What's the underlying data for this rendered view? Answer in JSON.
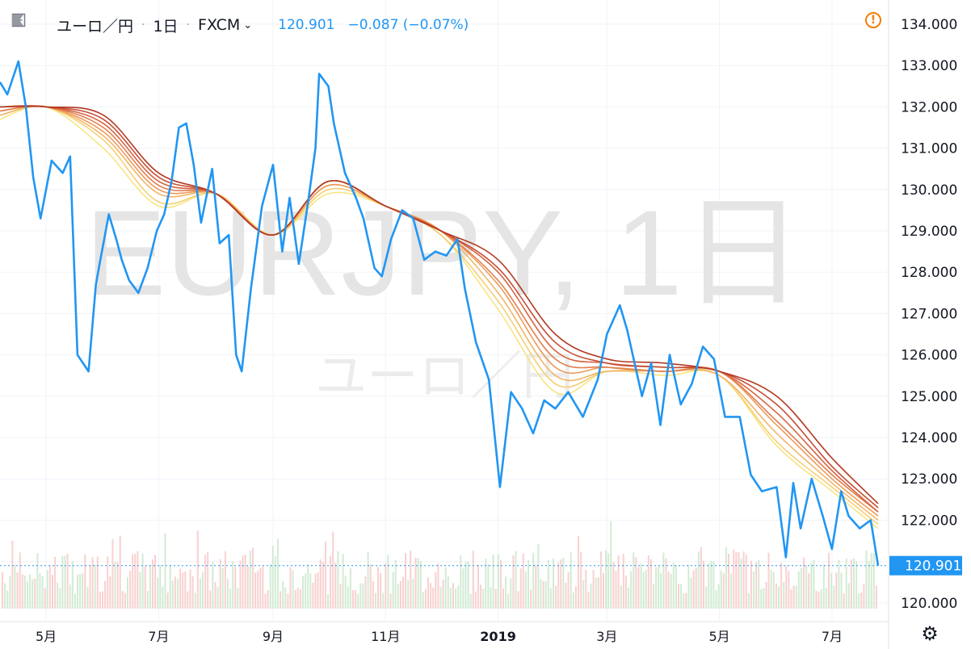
{
  "header": {
    "symbol": "ユーロ／円",
    "interval": "1日",
    "source": "FXCM",
    "price": "120.901",
    "change": "−0.087 (−0.07%)"
  },
  "watermark": {
    "title": "EURJPY, 1日",
    "subtitle": "ユーロ／円"
  },
  "icons": {
    "add": "plus-box-icon",
    "symbol": "flag-icon",
    "alert": "alert-icon",
    "settings": "gear-icon"
  },
  "colors": {
    "price": "#2196f3",
    "ribbon_light": "#f8e483",
    "ribbon_dark": "#b23a20",
    "volume_up": "#c8e6c9",
    "volume_down": "#f8c6c4"
  },
  "chart_data": {
    "type": "line",
    "title": "EURJPY, 1日",
    "y_ticks": [
      "134.000",
      "133.000",
      "132.000",
      "131.000",
      "130.000",
      "129.000",
      "128.000",
      "127.000",
      "126.000",
      "125.000",
      "124.000",
      "123.000",
      "122.000",
      "121.000",
      "120.000"
    ],
    "x_ticks": [
      "5月",
      "7月",
      "9月",
      "11月",
      "2019",
      "3月",
      "5月",
      "7月"
    ],
    "ylim": [
      119.7,
      134.3
    ],
    "last_price_label": "120.901",
    "grid": true,
    "series": [
      {
        "role": "price",
        "x": [
          "2018-04-06",
          "2018-04-10",
          "2018-04-16",
          "2018-04-20",
          "2018-04-24",
          "2018-04-28",
          "2018-05-04",
          "2018-05-10",
          "2018-05-14",
          "2018-05-18",
          "2018-05-24",
          "2018-05-28",
          "2018-05-30",
          "2018-06-04",
          "2018-06-08",
          "2018-06-11",
          "2018-06-15",
          "2018-06-20",
          "2018-06-25",
          "2018-06-30",
          "2018-07-04",
          "2018-07-08",
          "2018-07-12",
          "2018-07-16",
          "2018-07-20",
          "2018-07-24",
          "2018-07-30",
          "2018-08-03",
          "2018-08-08",
          "2018-08-12",
          "2018-08-15",
          "2018-08-20",
          "2018-08-26",
          "2018-09-01",
          "2018-09-06",
          "2018-09-10",
          "2018-09-15",
          "2018-09-20",
          "2018-09-24",
          "2018-09-26",
          "2018-10-01",
          "2018-10-04",
          "2018-10-10",
          "2018-10-16",
          "2018-10-20",
          "2018-10-26",
          "2018-10-30",
          "2018-11-04",
          "2018-11-10",
          "2018-11-16",
          "2018-11-22",
          "2018-11-28",
          "2018-12-04",
          "2018-12-10",
          "2018-12-14",
          "2018-12-20",
          "2018-12-27",
          "2019-01-02",
          "2019-01-08",
          "2019-01-14",
          "2019-01-20",
          "2019-01-26",
          "2019-02-01",
          "2019-02-08",
          "2019-02-16",
          "2019-02-24",
          "2019-03-01",
          "2019-03-08",
          "2019-03-12",
          "2019-03-20",
          "2019-03-25",
          "2019-03-30",
          "2019-04-04",
          "2019-04-10",
          "2019-04-16",
          "2019-04-22",
          "2019-04-28",
          "2019-05-04",
          "2019-05-12",
          "2019-05-18",
          "2019-05-24",
          "2019-06-01",
          "2019-06-06",
          "2019-06-10",
          "2019-06-14",
          "2019-06-20",
          "2019-06-26",
          "2019-07-01",
          "2019-07-06",
          "2019-07-10",
          "2019-07-16",
          "2019-07-22",
          "2019-07-26"
        ],
        "values": [
          132.6,
          132.3,
          133.1,
          132.0,
          130.3,
          129.3,
          130.7,
          130.4,
          130.8,
          126.0,
          125.6,
          127.7,
          128.2,
          129.4,
          128.8,
          128.3,
          127.8,
          127.5,
          128.1,
          129.0,
          129.4,
          130.2,
          131.5,
          131.6,
          130.6,
          129.2,
          130.5,
          128.7,
          128.9,
          126.0,
          125.6,
          127.6,
          129.6,
          130.6,
          128.5,
          129.8,
          128.2,
          129.7,
          131.0,
          132.8,
          132.5,
          131.6,
          130.4,
          129.8,
          129.3,
          128.1,
          127.9,
          128.8,
          129.5,
          129.3,
          128.3,
          128.5,
          128.4,
          128.8,
          127.6,
          126.3,
          125.4,
          122.8,
          125.1,
          124.7,
          124.1,
          124.9,
          124.7,
          125.1,
          124.5,
          125.4,
          126.5,
          127.2,
          126.6,
          125.0,
          125.8,
          124.3,
          126.0,
          124.8,
          125.3,
          126.2,
          125.9,
          124.5,
          124.5,
          123.1,
          122.7,
          122.8,
          121.1,
          122.9,
          121.8,
          123.0,
          122.1,
          121.3,
          122.7,
          122.1,
          121.8,
          122.0,
          120.9
        ]
      },
      {
        "role": "ma",
        "x": [
          "2018-04-06",
          "2018-05-01",
          "2018-06-01",
          "2018-07-01",
          "2018-08-01",
          "2018-09-01",
          "2018-10-01",
          "2018-11-01",
          "2018-12-01",
          "2019-01-01",
          "2019-02-01",
          "2019-03-01",
          "2019-04-01",
          "2019-05-01",
          "2019-06-01",
          "2019-07-01",
          "2019-07-26"
        ],
        "values": [
          131.7,
          132.0,
          131.0,
          129.6,
          129.9,
          128.9,
          129.9,
          129.6,
          128.9,
          127.1,
          125.1,
          125.6,
          125.5,
          125.5,
          123.8,
          122.7,
          121.8
        ]
      },
      {
        "role": "ma",
        "x": [
          "2018-04-06",
          "2018-05-01",
          "2018-06-01",
          "2018-07-01",
          "2018-08-01",
          "2018-09-01",
          "2018-10-01",
          "2018-11-01",
          "2018-12-01",
          "2019-01-01",
          "2019-02-01",
          "2019-03-01",
          "2019-04-01",
          "2019-05-01",
          "2019-06-01",
          "2019-07-01",
          "2019-07-26"
        ],
        "values": [
          131.8,
          132.0,
          131.2,
          129.7,
          129.9,
          128.9,
          130.0,
          129.6,
          128.9,
          127.3,
          125.3,
          125.6,
          125.6,
          125.5,
          123.9,
          122.8,
          121.9
        ]
      },
      {
        "role": "ma",
        "x": [
          "2018-04-06",
          "2018-05-01",
          "2018-06-01",
          "2018-07-01",
          "2018-08-01",
          "2018-09-01",
          "2018-10-01",
          "2018-11-01",
          "2018-12-01",
          "2019-01-01",
          "2019-02-01",
          "2019-03-01",
          "2019-04-01",
          "2019-05-01",
          "2019-06-01",
          "2019-07-01",
          "2019-07-26"
        ],
        "values": [
          131.8,
          132.0,
          131.3,
          129.9,
          129.9,
          128.9,
          130.1,
          129.6,
          129.0,
          127.5,
          125.5,
          125.6,
          125.6,
          125.5,
          124.1,
          122.9,
          122.0
        ]
      },
      {
        "role": "ma",
        "x": [
          "2018-04-06",
          "2018-05-01",
          "2018-06-01",
          "2018-07-01",
          "2018-08-01",
          "2018-09-01",
          "2018-10-01",
          "2018-11-01",
          "2018-12-01",
          "2019-01-01",
          "2019-02-01",
          "2019-03-01",
          "2019-04-01",
          "2019-05-01",
          "2019-06-01",
          "2019-07-01",
          "2019-07-26"
        ],
        "values": [
          131.9,
          132.0,
          131.4,
          130.0,
          129.9,
          128.9,
          130.1,
          129.6,
          129.0,
          127.7,
          125.7,
          125.7,
          125.6,
          125.6,
          124.3,
          123.0,
          122.1
        ]
      },
      {
        "role": "ma",
        "x": [
          "2018-04-06",
          "2018-05-01",
          "2018-06-01",
          "2018-07-01",
          "2018-08-01",
          "2018-09-01",
          "2018-10-01",
          "2018-11-01",
          "2018-12-01",
          "2019-01-01",
          "2019-02-01",
          "2019-03-01",
          "2019-04-01",
          "2019-05-01",
          "2019-06-01",
          "2019-07-01",
          "2019-07-26"
        ],
        "values": [
          131.9,
          132.0,
          131.5,
          130.1,
          129.9,
          128.9,
          130.2,
          129.6,
          129.0,
          127.8,
          125.9,
          125.7,
          125.6,
          125.6,
          124.4,
          123.1,
          122.2
        ]
      },
      {
        "role": "ma",
        "x": [
          "2018-04-06",
          "2018-05-01",
          "2018-06-01",
          "2018-07-01",
          "2018-08-01",
          "2018-09-01",
          "2018-10-01",
          "2018-11-01",
          "2018-12-01",
          "2019-01-01",
          "2019-02-01",
          "2019-03-01",
          "2019-04-01",
          "2019-05-01",
          "2019-06-01",
          "2019-07-01",
          "2019-07-26"
        ],
        "values": [
          132.0,
          132.0,
          131.6,
          130.2,
          129.9,
          128.9,
          130.2,
          129.6,
          129.0,
          128.0,
          126.1,
          125.8,
          125.7,
          125.6,
          124.6,
          123.2,
          122.2
        ]
      },
      {
        "role": "ma",
        "x": [
          "2018-04-06",
          "2018-05-01",
          "2018-06-01",
          "2018-07-01",
          "2018-08-01",
          "2018-09-01",
          "2018-10-01",
          "2018-11-01",
          "2018-12-01",
          "2019-01-01",
          "2019-02-01",
          "2019-03-01",
          "2019-04-01",
          "2019-05-01",
          "2019-06-01",
          "2019-07-01",
          "2019-07-26"
        ],
        "values": [
          132.0,
          132.0,
          131.7,
          130.3,
          129.9,
          128.9,
          130.2,
          129.6,
          129.0,
          128.1,
          126.3,
          125.8,
          125.7,
          125.6,
          124.8,
          123.3,
          122.3
        ]
      },
      {
        "role": "ma",
        "x": [
          "2018-04-06",
          "2018-05-01",
          "2018-06-01",
          "2018-07-01",
          "2018-08-01",
          "2018-09-01",
          "2018-10-01",
          "2018-11-01",
          "2018-12-01",
          "2019-01-01",
          "2019-02-01",
          "2019-03-01",
          "2019-04-01",
          "2019-05-01",
          "2019-06-01",
          "2019-07-01",
          "2019-07-26"
        ],
        "values": [
          132.0,
          132.0,
          131.8,
          130.4,
          129.9,
          128.9,
          130.2,
          129.6,
          129.0,
          128.3,
          126.5,
          125.9,
          125.8,
          125.6,
          125.0,
          123.5,
          122.4
        ]
      }
    ]
  }
}
